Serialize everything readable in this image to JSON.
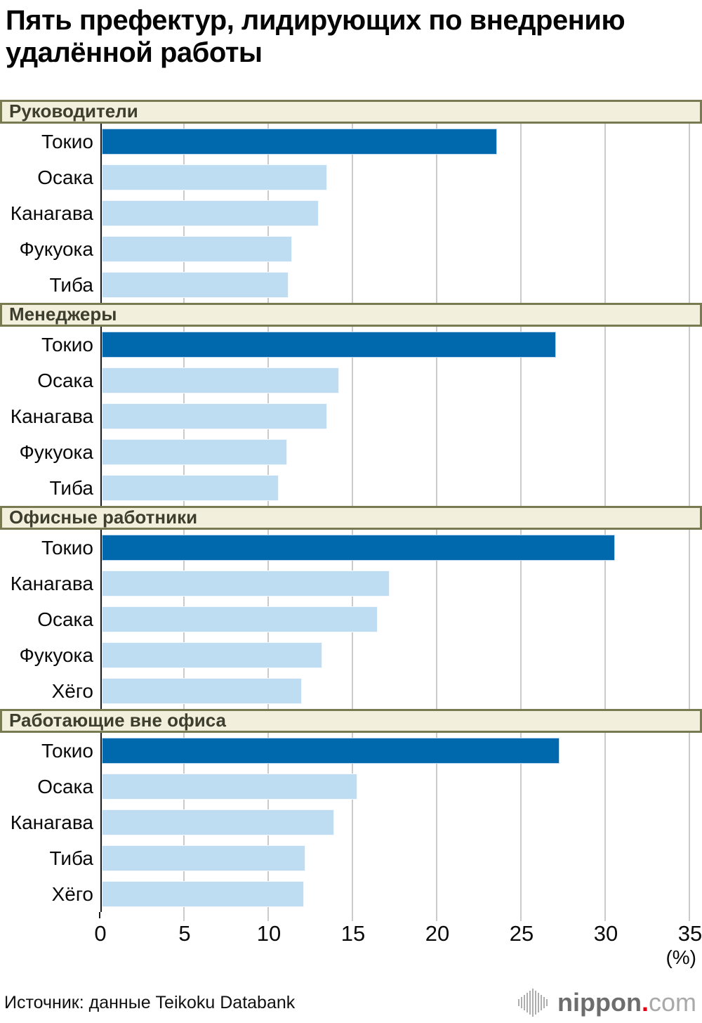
{
  "title": "Пять префектур, лидирующих по внедрению\nудалённой работы",
  "source": "Источник: данные Teikoku Databank",
  "axis": {
    "max": 35,
    "ticks": [
      "0",
      "5",
      "10",
      "15",
      "20",
      "25",
      "30",
      "35"
    ],
    "unit_label": "(%)"
  },
  "logo": {
    "name": "nippon",
    "dot": ".",
    "tld": "com",
    "icon": "waveform-icon",
    "dot_color": "#e60012"
  },
  "colors": {
    "bar_primary": "#0068ad",
    "bar_secondary": "#bfddf2",
    "header_bg": "#f2efdc",
    "header_border": "#787b52",
    "header_text": "#3e3e2e",
    "gridline": "#cbcbcb",
    "axis_line": "#1a1a1a"
  },
  "chart_data": [
    {
      "type": "bar",
      "orientation": "horizontal",
      "title": "Руководители",
      "categories": [
        "Токио",
        "Осака",
        "Канагава",
        "Фукуока",
        "Тиба"
      ],
      "values": [
        23.5,
        13.4,
        12.9,
        11.3,
        11.1
      ],
      "highlight_index": 0,
      "xlim": [
        0,
        35
      ],
      "xlabel": "(%)",
      "grid": true,
      "legend": false
    },
    {
      "type": "bar",
      "orientation": "horizontal",
      "title": "Менеджеры",
      "categories": [
        "Токио",
        "Осака",
        "Канагава",
        "Фукуока",
        "Тиба"
      ],
      "values": [
        27.0,
        14.1,
        13.4,
        11.0,
        10.5
      ],
      "highlight_index": 0,
      "xlim": [
        0,
        35
      ],
      "xlabel": "(%)",
      "grid": true,
      "legend": false
    },
    {
      "type": "bar",
      "orientation": "horizontal",
      "title": "Офисные работники",
      "categories": [
        "Токио",
        "Канагава",
        "Осака",
        "Фукуока",
        "Хёго"
      ],
      "values": [
        30.5,
        17.1,
        16.4,
        13.1,
        11.9
      ],
      "highlight_index": 0,
      "xlim": [
        0,
        35
      ],
      "xlabel": "(%)",
      "grid": true,
      "legend": false
    },
    {
      "type": "bar",
      "orientation": "horizontal",
      "title": "Работающие вне офиса",
      "categories": [
        "Токио",
        "Осака",
        "Канагава",
        "Тиба",
        "Хёго"
      ],
      "values": [
        27.2,
        15.2,
        13.8,
        12.1,
        12.0
      ],
      "highlight_index": 0,
      "xlim": [
        0,
        35
      ],
      "xlabel": "(%)",
      "grid": true,
      "legend": false
    }
  ]
}
